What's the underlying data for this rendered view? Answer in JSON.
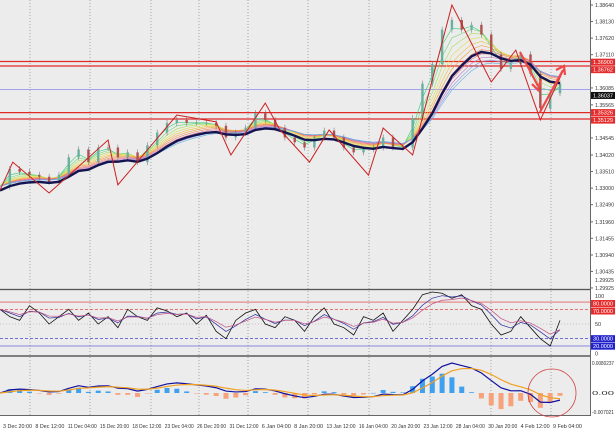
{
  "chart_data": {
    "type": "line",
    "price_axis": {
      "ticks": [
        "1.38640",
        "1.38130",
        "1.37620",
        "1.37110",
        "1.36085",
        "1.35565",
        "1.34545",
        "1.34020",
        "1.33510",
        "1.33000",
        "1.32490",
        "1.31960",
        "1.31455",
        "1.30940",
        "1.30435",
        "1.29925"
      ],
      "ylim": [
        1.29925,
        1.3864
      ]
    },
    "time_axis": {
      "ticks": [
        "3 Dec 20:00",
        "8 Dec 12:00",
        "11 Dec 04:00",
        "15 Dec 20:00",
        "18 Dec 12:00",
        "23 Dec 04:00",
        "26 Dec 20:00",
        "31 Dec 12:00",
        "6 Jan 04:00",
        "8 Jan 20:00",
        "13 Jan 12:00",
        "16 Jan 04:00",
        "20 Jan 20:00",
        "23 Jan 12:00",
        "28 Jan 04:00",
        "30 Jan 20:00",
        "4 Feb 12:00",
        "9 Feb 04:00"
      ]
    },
    "price_series": [
      1.3305,
      1.3359,
      1.335,
      1.3341,
      1.3335,
      1.332,
      1.3341,
      1.3395,
      1.3419,
      1.338,
      1.3425,
      1.3425,
      1.3395,
      1.341,
      1.338,
      1.3432,
      1.3471,
      1.3501,
      1.351,
      1.3501,
      1.3501,
      1.3501,
      1.3492,
      1.3456,
      1.3471,
      1.3486,
      1.3531,
      1.351,
      1.3486,
      1.3456,
      1.3441,
      1.3425,
      1.3456,
      1.3477,
      1.3456,
      1.3425,
      1.341,
      1.3419,
      1.3425,
      1.3456,
      1.3425,
      1.3425,
      1.3516,
      1.3622,
      1.3682,
      1.3788,
      1.3818,
      1.3788,
      1.3803,
      1.3773,
      1.3712,
      1.3667,
      1.3682,
      1.3712,
      1.3652,
      1.3546,
      1.3592,
      1.3622
    ],
    "zigzag": [
      {
        "bar": 0,
        "price": 1.3294
      },
      {
        "bar": 1.3,
        "price": 1.338
      },
      {
        "bar": 5,
        "price": 1.3285
      },
      {
        "bar": 11,
        "price": 1.3448
      },
      {
        "bar": 12,
        "price": 1.331
      },
      {
        "bar": 18,
        "price": 1.3525
      },
      {
        "bar": 22,
        "price": 1.3504
      },
      {
        "bar": 23.5,
        "price": 1.3402
      },
      {
        "bar": 27,
        "price": 1.3562
      },
      {
        "bar": 28.5,
        "price": 1.3479
      },
      {
        "bar": 31.5,
        "price": 1.338
      },
      {
        "bar": 33.5,
        "price": 1.3479
      },
      {
        "bar": 37.5,
        "price": 1.334
      },
      {
        "bar": 39,
        "price": 1.3485
      },
      {
        "bar": 42,
        "price": 1.3402
      },
      {
        "bar": 46,
        "price": 1.3864
      },
      {
        "bar": 50,
        "price": 1.3627
      },
      {
        "bar": 52.5,
        "price": 1.3725
      },
      {
        "bar": 55,
        "price": 1.351
      },
      {
        "bar": 57.5,
        "price": 1.3673
      }
    ],
    "levels": [
      {
        "price": 1.369,
        "label": "1.36900",
        "color": "#e02a2a"
      },
      {
        "price": 1.36762,
        "label": "1.36762",
        "color": "#e02a2a"
      },
      {
        "price": 1.36037,
        "label": "1.36037",
        "color": "#8888ee",
        "current": true
      },
      {
        "price": 1.35326,
        "label": "1.35326",
        "color": "#e02a2a"
      },
      {
        "price": 1.35129,
        "label": "1.35129",
        "color": "#e02a2a"
      }
    ],
    "oscillator": {
      "ticks": [
        "100",
        "50",
        "0"
      ],
      "levels": [
        {
          "value": 80,
          "label": "80.0000",
          "color": "#e02a2a"
        },
        {
          "value": 70,
          "label": "70.0000",
          "color": "#e02a2a"
        },
        {
          "value": 30,
          "label": "30.0000",
          "color": "#2222cc"
        },
        {
          "value": 20,
          "label": "20.0000",
          "color": "#2222cc"
        }
      ],
      "values": [
        70,
        60,
        55,
        75,
        65,
        50,
        60,
        70,
        55,
        65,
        50,
        60,
        45,
        70,
        60,
        55,
        72,
        68,
        60,
        65,
        50,
        62,
        40,
        30,
        55,
        65,
        70,
        50,
        45,
        60,
        55,
        40,
        60,
        72,
        50,
        45,
        35,
        60,
        55,
        65,
        40,
        55,
        70,
        90,
        95,
        92,
        85,
        90,
        75,
        70,
        50,
        35,
        40,
        60,
        45,
        30,
        20,
        55
      ]
    },
    "macd": {
      "ticks": [
        "0.0080237",
        "0.00",
        "-0.007021"
      ],
      "ylim": [
        -0.007021,
        0.0080237
      ]
    },
    "price_ticks_top": "1.29925",
    "colors": {
      "ma": "#141450",
      "zigzag": "#cc1f1f",
      "hist_pos": "#3fa0f0",
      "hist_neg": "#f7a27a",
      "signal": "#f0a020"
    }
  }
}
